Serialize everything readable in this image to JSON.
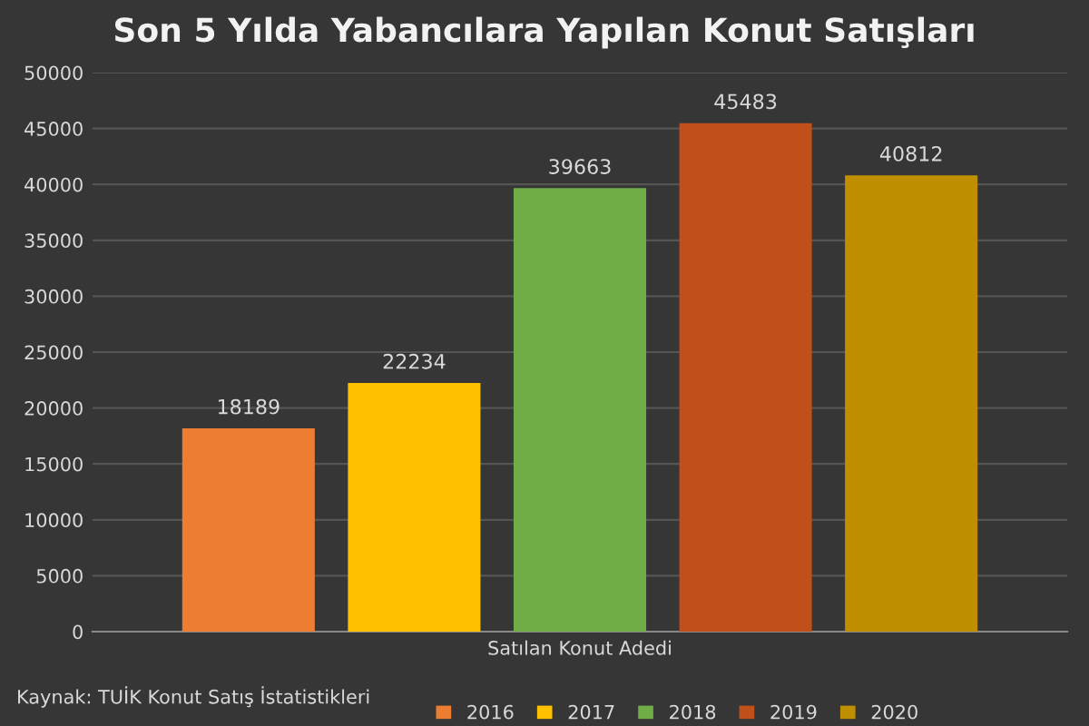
{
  "chart_data": {
    "type": "bar",
    "title": "Son 5 Yılda Yabancılara Yapılan Konut Satışları",
    "categories": [
      "Satılan Konut Adedi"
    ],
    "series": [
      {
        "name": "2016",
        "color": "#ed7d31",
        "values": [
          18189
        ]
      },
      {
        "name": "2017",
        "color": "#ffc000",
        "values": [
          22234
        ]
      },
      {
        "name": "2018",
        "color": "#70ad47",
        "values": [
          39663
        ]
      },
      {
        "name": "2019",
        "color": "#c0501a",
        "values": [
          45483
        ]
      },
      {
        "name": "2020",
        "color": "#bf8f00",
        "values": [
          40812
        ]
      }
    ],
    "ylim": [
      0,
      50000
    ],
    "yticks": [
      0,
      5000,
      10000,
      15000,
      20000,
      25000,
      30000,
      35000,
      40000,
      45000,
      50000
    ],
    "grid": "y",
    "legend": "bottom",
    "data_labels": true,
    "annotations": [
      "Kaynak: TUİK Konut Satış İstatistikleri"
    ]
  }
}
